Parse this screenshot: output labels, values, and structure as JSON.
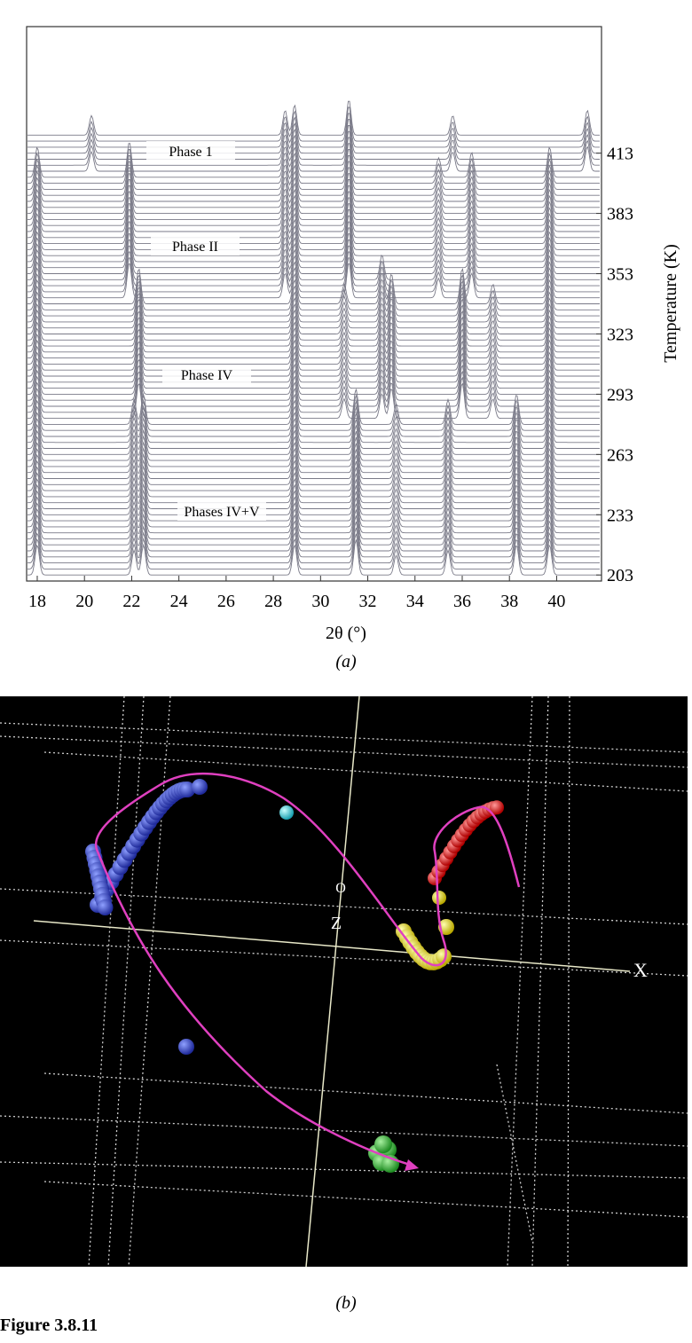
{
  "panel_a": {
    "x_label": "2θ (°)",
    "y_label": "Temperature (K)",
    "caption": "(a)",
    "xlim": [
      17.55,
      41.9
    ],
    "xticks": [
      18,
      20,
      22,
      24,
      26,
      28,
      30,
      32,
      34,
      36,
      38,
      40
    ],
    "ylim": [
      200,
      476
    ],
    "yticks": [
      203,
      233,
      263,
      293,
      323,
      353,
      383,
      413
    ],
    "trace_range": [
      203,
      423
    ],
    "trace_step": 3,
    "phases": [
      "Phase 1",
      "Phase II",
      "Phase IV",
      "Phases IV+V"
    ],
    "peaks": [
      {
        "position": 20.3,
        "from": 403,
        "to": 423
      },
      {
        "position": 28.5,
        "from": 340,
        "to": 423
      },
      {
        "position": 28.9,
        "from": 203,
        "to": 423
      },
      {
        "position": 31.2,
        "from": 340,
        "to": 423
      },
      {
        "position": 35.6,
        "from": 403,
        "to": 423
      },
      {
        "position": 41.3,
        "from": 403,
        "to": 423
      },
      {
        "position": 18.0,
        "from": 203,
        "to": 402
      },
      {
        "position": 21.9,
        "from": 340,
        "to": 402
      },
      {
        "position": 35.0,
        "from": 340,
        "to": 402
      },
      {
        "position": 36.4,
        "from": 340,
        "to": 402
      },
      {
        "position": 39.7,
        "from": 203,
        "to": 402
      },
      {
        "position": 22.3,
        "from": 280,
        "to": 339
      },
      {
        "position": 31.0,
        "from": 280,
        "to": 339
      },
      {
        "position": 32.6,
        "from": 280,
        "to": 350
      },
      {
        "position": 33.0,
        "from": 280,
        "to": 339
      },
      {
        "position": 36.0,
        "from": 280,
        "to": 339
      },
      {
        "position": 37.3,
        "from": 280,
        "to": 339
      },
      {
        "position": 22.1,
        "from": 203,
        "to": 279
      },
      {
        "position": 22.5,
        "from": 203,
        "to": 279
      },
      {
        "position": 31.5,
        "from": 203,
        "to": 279
      },
      {
        "position": 33.2,
        "from": 203,
        "to": 279
      },
      {
        "position": 35.4,
        "from": 203,
        "to": 279
      },
      {
        "position": 38.3,
        "from": 203,
        "to": 279
      }
    ]
  },
  "panel_b": {
    "axis_x": "X",
    "axis_z": "Z",
    "origin": "O",
    "caption": "(b)"
  },
  "figure_label": "Figure 3.8.11"
}
